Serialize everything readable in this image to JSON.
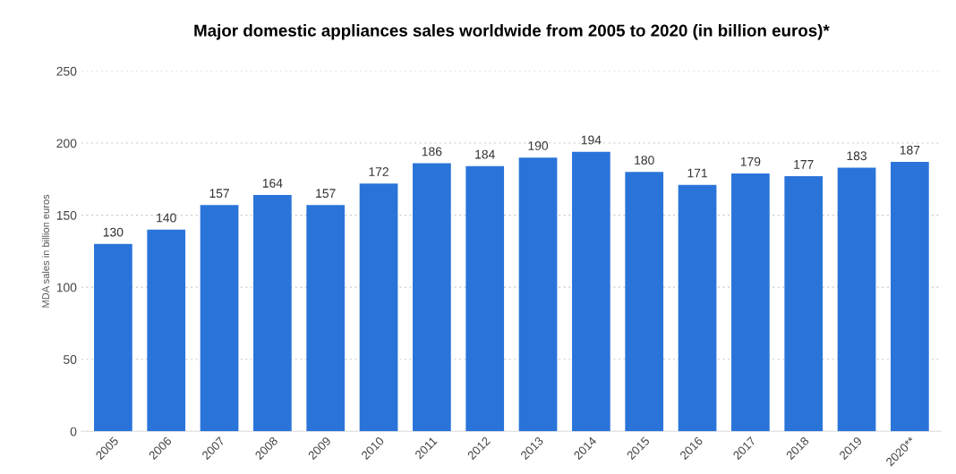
{
  "chart_data": {
    "type": "bar",
    "title": "Major domestic appliances sales worldwide from 2005 to 2020 (in billion euros)*",
    "ylabel": "MDA sales in billion euros",
    "categories": [
      "2005",
      "2006",
      "2007",
      "2008",
      "2009",
      "2010",
      "2011",
      "2012",
      "2013",
      "2014",
      "2015",
      "2016",
      "2017",
      "2018",
      "2019",
      "2020**"
    ],
    "values": [
      130,
      140,
      157,
      164,
      157,
      172,
      186,
      184,
      190,
      194,
      180,
      171,
      179,
      177,
      183,
      187
    ],
    "color": "#2a74d9",
    "ylim": [
      0,
      250
    ],
    "yticks": [
      0,
      50,
      100,
      150,
      200,
      250
    ],
    "grid": "y",
    "data_labels": true,
    "legend": false
  }
}
